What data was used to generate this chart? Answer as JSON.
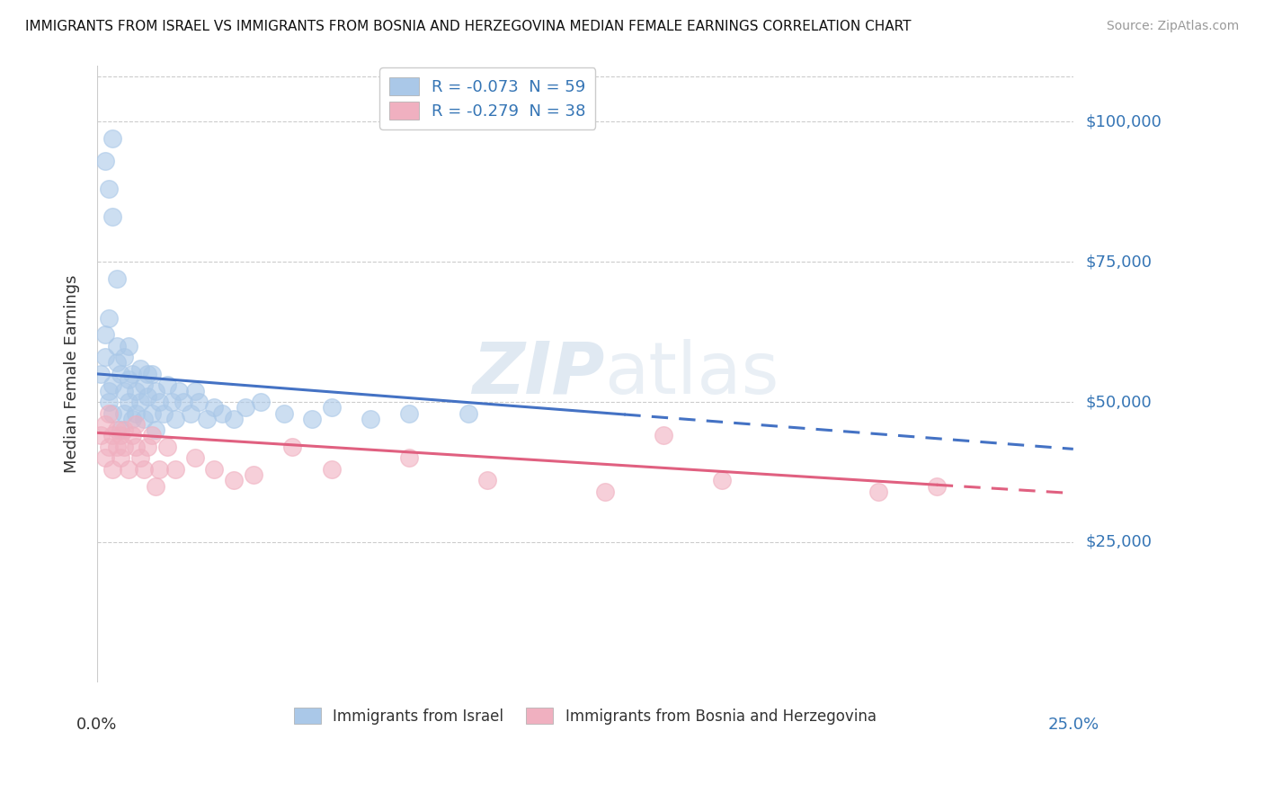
{
  "title": "IMMIGRANTS FROM ISRAEL VS IMMIGRANTS FROM BOSNIA AND HERZEGOVINA MEDIAN FEMALE EARNINGS CORRELATION CHART",
  "source": "Source: ZipAtlas.com",
  "ylabel": "Median Female Earnings",
  "legend_label1": "R = -0.073  N = 59",
  "legend_label2": "R = -0.279  N = 38",
  "legend_entry1": "Immigrants from Israel",
  "legend_entry2": "Immigrants from Bosnia and Herzegovina",
  "yticks": [
    25000,
    50000,
    75000,
    100000
  ],
  "ytick_labels": [
    "$25,000",
    "$50,000",
    "$75,000",
    "$100,000"
  ],
  "xlim": [
    0.0,
    0.25
  ],
  "ylim": [
    0,
    110000
  ],
  "blue_color": "#aac8e8",
  "pink_color": "#f0b0c0",
  "blue_line_color": "#4472c4",
  "pink_line_color": "#e06080",
  "blue_x": [
    0.001,
    0.002,
    0.002,
    0.003,
    0.003,
    0.003,
    0.004,
    0.004,
    0.005,
    0.005,
    0.006,
    0.006,
    0.007,
    0.007,
    0.007,
    0.008,
    0.008,
    0.008,
    0.009,
    0.009,
    0.01,
    0.01,
    0.011,
    0.011,
    0.012,
    0.012,
    0.013,
    0.013,
    0.014,
    0.014,
    0.015,
    0.015,
    0.016,
    0.017,
    0.018,
    0.019,
    0.02,
    0.021,
    0.022,
    0.024,
    0.025,
    0.026,
    0.028,
    0.03,
    0.032,
    0.035,
    0.038,
    0.042,
    0.048,
    0.055,
    0.06,
    0.07,
    0.08,
    0.095,
    0.002,
    0.003,
    0.004,
    0.004,
    0.005
  ],
  "blue_y": [
    55000,
    58000,
    62000,
    50000,
    52000,
    65000,
    48000,
    53000,
    57000,
    60000,
    45000,
    55000,
    48000,
    52000,
    58000,
    50000,
    54000,
    60000,
    47000,
    55000,
    52000,
    48000,
    56000,
    50000,
    53000,
    47000,
    55000,
    51000,
    48000,
    55000,
    52000,
    45000,
    50000,
    48000,
    53000,
    50000,
    47000,
    52000,
    50000,
    48000,
    52000,
    50000,
    47000,
    49000,
    48000,
    47000,
    49000,
    50000,
    48000,
    47000,
    49000,
    47000,
    48000,
    48000,
    93000,
    88000,
    83000,
    97000,
    72000
  ],
  "pink_x": [
    0.001,
    0.002,
    0.002,
    0.003,
    0.003,
    0.004,
    0.004,
    0.005,
    0.005,
    0.006,
    0.006,
    0.007,
    0.007,
    0.008,
    0.009,
    0.01,
    0.01,
    0.011,
    0.012,
    0.013,
    0.014,
    0.015,
    0.016,
    0.018,
    0.02,
    0.025,
    0.03,
    0.035,
    0.04,
    0.05,
    0.06,
    0.08,
    0.1,
    0.13,
    0.145,
    0.16,
    0.2,
    0.215
  ],
  "pink_y": [
    44000,
    46000,
    40000,
    42000,
    48000,
    44000,
    38000,
    45000,
    42000,
    44000,
    40000,
    45000,
    42000,
    38000,
    44000,
    42000,
    46000,
    40000,
    38000,
    42000,
    44000,
    35000,
    38000,
    42000,
    38000,
    40000,
    38000,
    36000,
    37000,
    42000,
    38000,
    40000,
    36000,
    34000,
    44000,
    36000,
    34000,
    35000
  ]
}
